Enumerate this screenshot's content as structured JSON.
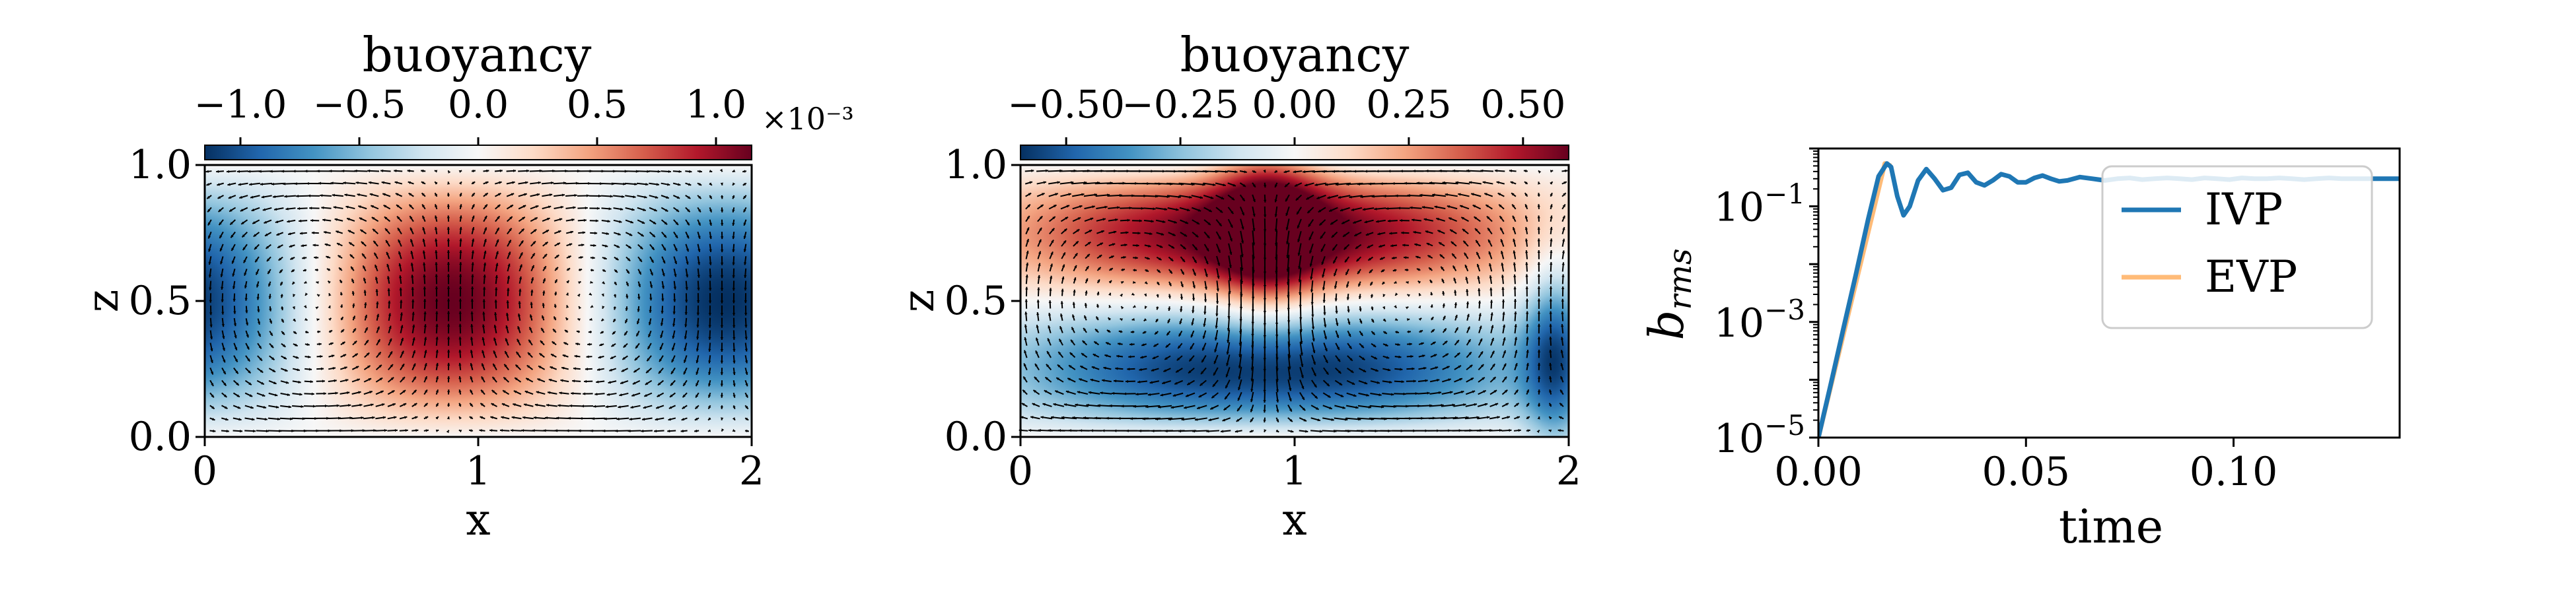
{
  "chart_data": [
    {
      "type": "heatmap",
      "colorbar_title": "buoyancy",
      "colorbar_ticks": [
        -1.0,
        -0.5,
        0.0,
        0.5,
        1.0
      ],
      "colorbar_tick_labels": [
        "−1.0",
        "−0.5",
        "0.0",
        "0.5",
        "1.0"
      ],
      "colorbar_multiplier": "×10⁻³",
      "vmin": -1.15,
      "vmax": 1.15,
      "xlabel": "x",
      "ylabel": "z",
      "xlim": [
        0,
        2
      ],
      "ylim": [
        0,
        1
      ],
      "xticks": [
        0,
        1,
        2
      ],
      "xtick_labels": [
        "0",
        "1",
        "2"
      ],
      "yticks": [
        0.0,
        0.5,
        1.0
      ],
      "ytick_labels": [
        "0.0",
        "0.5",
        "1.0"
      ],
      "field": {
        "pattern": "cos",
        "center_x": 0.9,
        "amplitude": 1.15
      },
      "quiver": true,
      "colormap": "RdBu_r"
    },
    {
      "type": "heatmap",
      "colorbar_title": "buoyancy",
      "colorbar_ticks": [
        -0.5,
        -0.25,
        0.0,
        0.25,
        0.5
      ],
      "colorbar_tick_labels": [
        "−0.50",
        "−0.25",
        "0.00",
        "0.25",
        "0.50"
      ],
      "vmin": -0.6,
      "vmax": 0.6,
      "xlabel": "x",
      "ylabel": "z",
      "xlim": [
        0,
        2
      ],
      "ylim": [
        0,
        1
      ],
      "xticks": [
        0,
        1,
        2
      ],
      "xtick_labels": [
        "0",
        "1",
        "2"
      ],
      "yticks": [
        0.0,
        0.5,
        1.0
      ],
      "ytick_labels": [
        "0.0",
        "0.5",
        "1.0"
      ],
      "field": {
        "pattern": "plume",
        "center_x": 0.9,
        "amplitude": 0.6
      },
      "quiver": true,
      "colormap": "RdBu_r"
    },
    {
      "type": "line",
      "xlabel": "time",
      "ylabel": "b_rms",
      "ylabel_main": "b",
      "ylabel_sub": "rms",
      "xlim": [
        0,
        0.14
      ],
      "ylim": [
        1e-05,
        1.0
      ],
      "yscale": "log",
      "xticks": [
        0.0,
        0.05,
        0.1
      ],
      "xtick_labels": [
        "0.00",
        "0.05",
        "0.10"
      ],
      "yticks": [
        1e-05,
        0.001,
        0.1
      ],
      "ytick_labels": [
        {
          "base": "10",
          "exp": "−5"
        },
        {
          "base": "10",
          "exp": "−3"
        },
        {
          "base": "10",
          "exp": "−1"
        }
      ],
      "legend_position": "upper-right",
      "series": [
        {
          "name": "IVP",
          "color": "#1f77b4",
          "x": [
            0.0,
            0.003,
            0.006,
            0.009,
            0.012,
            0.0145,
            0.0165,
            0.0175,
            0.019,
            0.0205,
            0.022,
            0.024,
            0.026,
            0.028,
            0.03,
            0.032,
            0.034,
            0.036,
            0.038,
            0.04,
            0.042,
            0.044,
            0.046,
            0.048,
            0.05,
            0.052,
            0.054,
            0.056,
            0.058,
            0.06,
            0.063,
            0.066,
            0.069,
            0.072,
            0.075,
            0.078,
            0.081,
            0.084,
            0.087,
            0.09,
            0.093,
            0.096,
            0.099,
            0.102,
            0.105,
            0.108,
            0.111,
            0.114,
            0.117,
            0.12,
            0.123,
            0.126,
            0.129,
            0.132,
            0.135,
            0.138,
            0.14
          ],
          "y": [
            1e-05,
            8.5e-05,
            0.00075,
            0.0065,
            0.06,
            0.33,
            0.55,
            0.48,
            0.15,
            0.07,
            0.1,
            0.28,
            0.44,
            0.3,
            0.19,
            0.21,
            0.35,
            0.38,
            0.26,
            0.23,
            0.28,
            0.36,
            0.33,
            0.26,
            0.26,
            0.31,
            0.34,
            0.3,
            0.27,
            0.28,
            0.32,
            0.3,
            0.28,
            0.3,
            0.31,
            0.29,
            0.3,
            0.31,
            0.3,
            0.29,
            0.31,
            0.3,
            0.29,
            0.31,
            0.3,
            0.3,
            0.31,
            0.3,
            0.29,
            0.3,
            0.31,
            0.3,
            0.3,
            0.3,
            0.3,
            0.3,
            0.3
          ]
        },
        {
          "name": "EVP",
          "color": "#ffbb78",
          "x": [
            0.0,
            0.016,
            0.0175
          ],
          "y": [
            1e-05,
            0.55,
            0.5
          ]
        }
      ]
    }
  ]
}
